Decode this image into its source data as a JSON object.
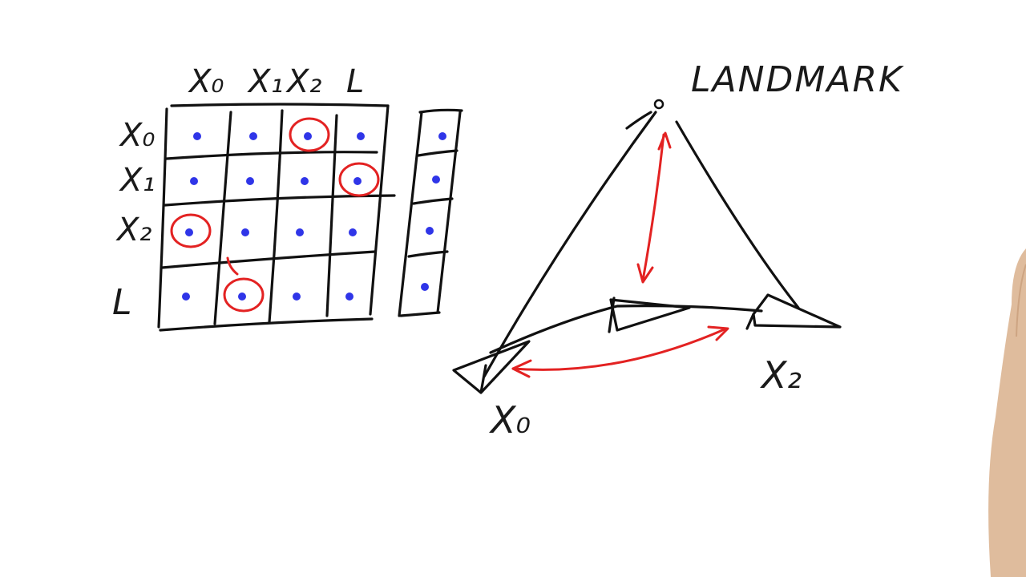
{
  "matrix": {
    "col_headers": [
      "X₀",
      "X₁",
      "X₂",
      "L"
    ],
    "row_headers": [
      "X₀",
      "X₁",
      "X₂",
      "L"
    ],
    "circled_cells": [
      [
        0,
        2
      ],
      [
        1,
        3
      ],
      [
        2,
        0
      ],
      [
        3,
        1
      ]
    ]
  },
  "vector": {
    "rows": 4
  },
  "diagram": {
    "landmark_label": "LANDMARK",
    "pose_labels": [
      "X₀",
      "X₂"
    ]
  },
  "colors": {
    "ink": "#111111",
    "marker_red": "#e32222",
    "dot_blue": "#2f35e8"
  }
}
